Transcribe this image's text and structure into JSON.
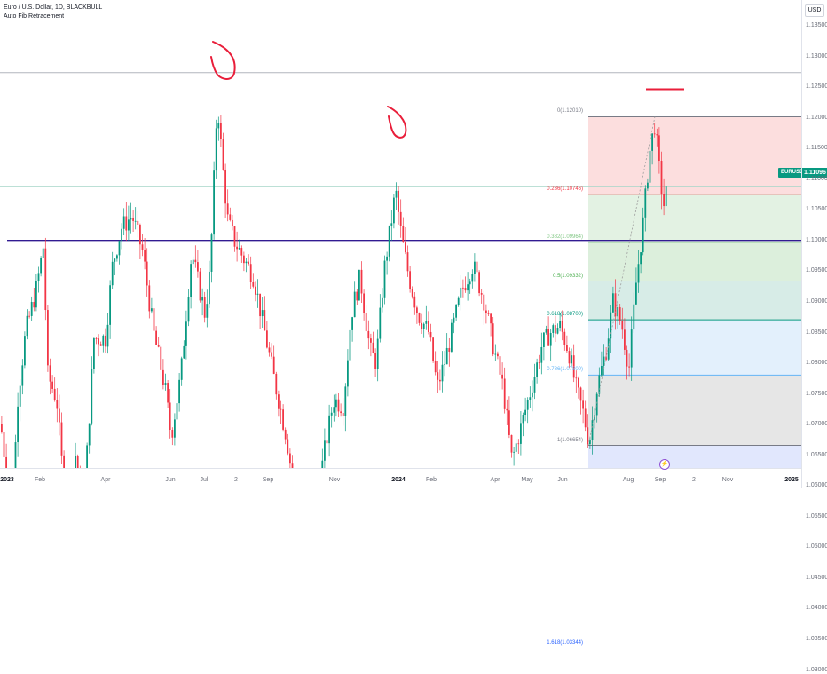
{
  "legend": {
    "symbol_line": "Euro / U.S. Dollar, 1D, BLACKBULL",
    "indicator": "Auto Fib Retracement"
  },
  "price_axis": {
    "currency": "USD",
    "ticks": [
      "1.13500",
      "1.13000",
      "1.12500",
      "1.12000",
      "1.11500",
      "1.11000",
      "1.10500",
      "1.10000",
      "1.09500",
      "1.09000",
      "1.08500",
      "1.08000",
      "1.07500",
      "1.07000",
      "1.06500",
      "1.06000",
      "1.05500",
      "1.05000",
      "1.04500",
      "1.04000",
      "1.03500",
      "1.03000"
    ],
    "current_price": "1.11096",
    "symbol_tag": "EURUSD"
  },
  "time_axis": {
    "ticks": [
      {
        "label": "2023",
        "bold": true
      },
      {
        "label": "Feb",
        "bold": false
      },
      {
        "label": "Apr",
        "bold": false
      },
      {
        "label": "Jun",
        "bold": false
      },
      {
        "label": "Jul",
        "bold": false
      },
      {
        "label": "2",
        "bold": false
      },
      {
        "label": "Sep",
        "bold": false
      },
      {
        "label": "Nov",
        "bold": false
      },
      {
        "label": "2024",
        "bold": true
      },
      {
        "label": "Feb",
        "bold": false
      },
      {
        "label": "Apr",
        "bold": false
      },
      {
        "label": "May",
        "bold": false
      },
      {
        "label": "Jun",
        "bold": false
      },
      {
        "label": "Aug",
        "bold": false
      },
      {
        "label": "Sep",
        "bold": false
      },
      {
        "label": "2",
        "bold": false
      },
      {
        "label": "Nov",
        "bold": false
      },
      {
        "label": "2025",
        "bold": true
      }
    ]
  },
  "fib_levels": [
    {
      "label": "0(1.12010)",
      "color": "#787b86"
    },
    {
      "label": "0.236(1.10746)",
      "color": "#f23645"
    },
    {
      "label": "0.382(1.09964)",
      "color": "#81c784"
    },
    {
      "label": "0.5(1.09332)",
      "color": "#4caf50"
    },
    {
      "label": "0.618(1.08700)",
      "color": "#089981"
    },
    {
      "label": "0.786(1.07800)",
      "color": "#64b5f6"
    },
    {
      "label": "1(1.06654)",
      "color": "#787b86"
    },
    {
      "label": "1.618(1.03344)",
      "color": "#2962ff"
    }
  ],
  "colors": {
    "up": "#089981",
    "down": "#f23645",
    "annotation": "#e91e3a",
    "support": "#311b92"
  },
  "icons": {
    "event": "lightning-icon"
  }
}
